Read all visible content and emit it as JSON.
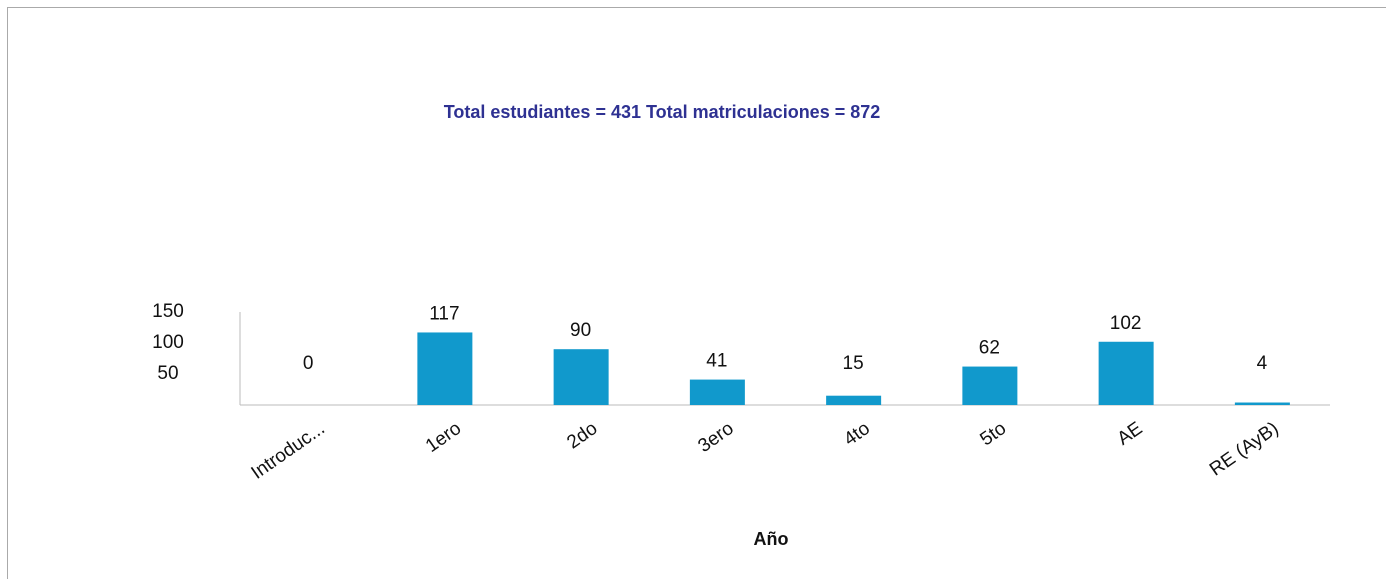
{
  "chart_data": {
    "type": "bar",
    "title": "Total estudiantes = 431 Total matriculaciones = 872",
    "x_label": "Año",
    "categories": [
      "Introduc...",
      "1ero",
      "2do",
      "3ero",
      "4to",
      "5to",
      "AE",
      "RE (AyB)"
    ],
    "values": [
      0,
      117,
      90,
      41,
      15,
      62,
      102,
      4
    ],
    "color": "#1199cc",
    "ylim": [
      0,
      150
    ],
    "yticks": [
      50,
      100,
      150
    ],
    "grid": false
  }
}
